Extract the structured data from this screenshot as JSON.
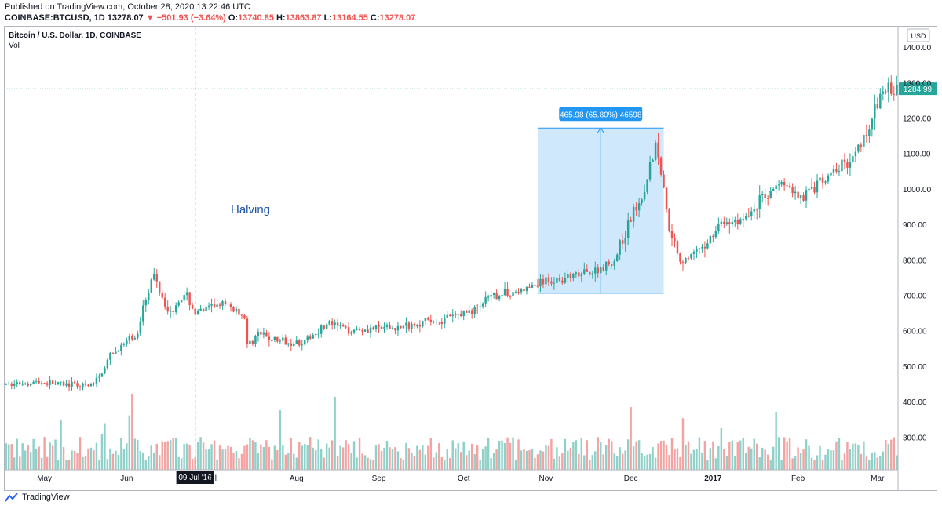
{
  "header": {
    "published": "Published on TradingView.com, October 28, 2020 13:22:46 UTC",
    "symbol": "COINBASE:BTCUSD, 1D",
    "last": "13278.07",
    "change": "▼ −501.93 (−3.64%)",
    "o_label": "O:",
    "o_value": "13740.85",
    "h_label": "H:",
    "h_value": "13863.87",
    "l_label": "L:",
    "l_value": "13164.55",
    "c_label": "C:",
    "c_value": "13278.07"
  },
  "footer": {
    "brand": "TradingView"
  },
  "colors": {
    "up": "#26a69a",
    "down": "#ef5350",
    "up_vol": "#8fd0c9",
    "down_vol": "#f4a3a2",
    "measure_fill": "#bbdefb",
    "measure_line": "#2196f3"
  },
  "chart_data": {
    "type": "candlestick",
    "title": "Bitcoin / U.S. Dollar, 1D, COINBASE",
    "indicator": "Vol",
    "currency_button": "USD",
    "x_ticks": [
      "May",
      "Jun",
      "Jul",
      "Aug",
      "Sep",
      "Oct",
      "Nov",
      "Dec",
      "2017",
      "Feb",
      "Mar"
    ],
    "y_ticks": [
      "300.00",
      "400.00",
      "500.00",
      "600.00",
      "700.00",
      "800.00",
      "900.00",
      "1000.00",
      "1100.00",
      "1200.00",
      "1300.00",
      "1400.00"
    ],
    "ylim": [
      210,
      1460
    ],
    "last_price": 1284.99,
    "last_price_label": "1284.99",
    "annotation": {
      "text": "Halving",
      "date_label": "09 Jul '16",
      "day_index": 69
    },
    "measure": {
      "label": "465.98 (65.80%) 46598",
      "start_day": 194,
      "end_day": 240,
      "low": 708,
      "high": 1174
    },
    "price_path": [
      [
        0,
        450
      ],
      [
        10,
        458
      ],
      [
        20,
        452
      ],
      [
        30,
        445
      ],
      [
        34,
        470
      ],
      [
        38,
        530
      ],
      [
        44,
        570
      ],
      [
        48,
        590
      ],
      [
        50,
        680
      ],
      [
        54,
        760
      ],
      [
        57,
        700
      ],
      [
        60,
        650
      ],
      [
        63,
        690
      ],
      [
        66,
        700
      ],
      [
        69,
        650
      ],
      [
        78,
        680
      ],
      [
        84,
        660
      ],
      [
        87,
        640
      ],
      [
        88,
        560
      ],
      [
        92,
        595
      ],
      [
        96,
        580
      ],
      [
        102,
        570
      ],
      [
        109,
        570
      ],
      [
        114,
        605
      ],
      [
        118,
        622
      ],
      [
        125,
        605
      ],
      [
        135,
        608
      ],
      [
        145,
        612
      ],
      [
        152,
        628
      ],
      [
        158,
        630
      ],
      [
        170,
        660
      ],
      [
        178,
        700
      ],
      [
        188,
        715
      ],
      [
        196,
        740
      ],
      [
        210,
        760
      ],
      [
        215,
        770
      ],
      [
        222,
        800
      ],
      [
        228,
        920
      ],
      [
        232,
        980
      ],
      [
        237,
        1130
      ],
      [
        239,
        1050
      ],
      [
        242,
        900
      ],
      [
        246,
        800
      ],
      [
        254,
        830
      ],
      [
        260,
        900
      ],
      [
        270,
        920
      ],
      [
        275,
        970
      ],
      [
        283,
        1020
      ],
      [
        290,
        980
      ],
      [
        298,
        1020
      ],
      [
        310,
        1100
      ],
      [
        316,
        1200
      ],
      [
        320,
        1280
      ],
      [
        325,
        1284.99
      ]
    ]
  }
}
